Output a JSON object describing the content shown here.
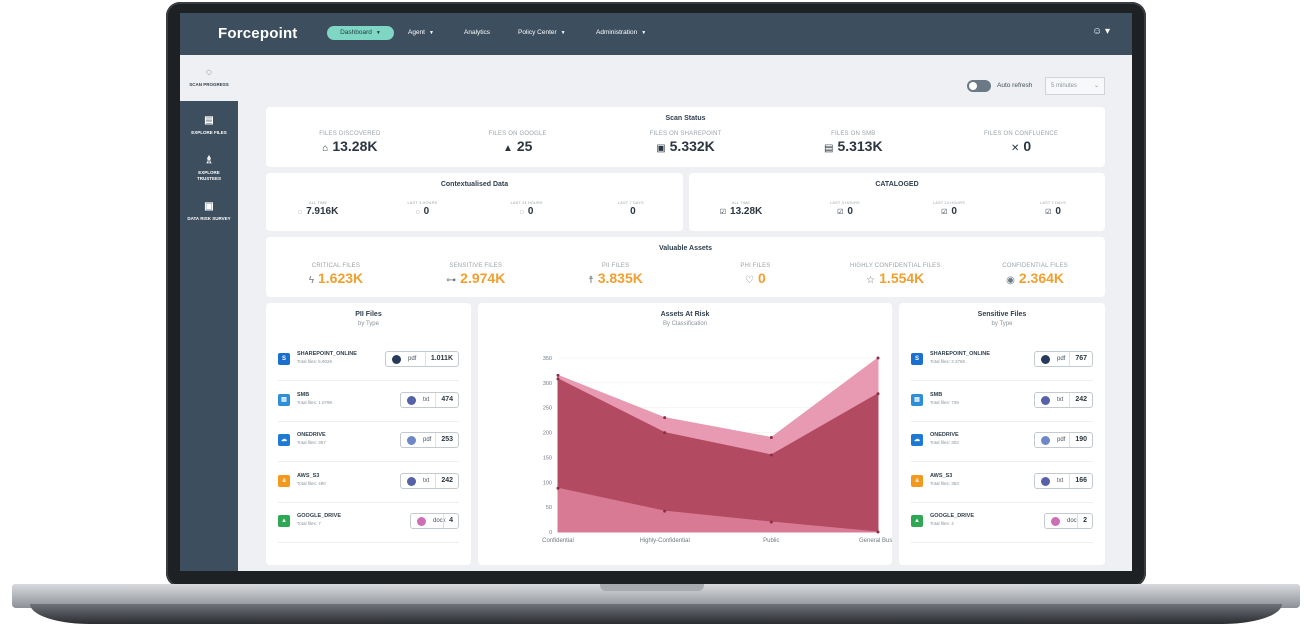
{
  "app": {
    "logo": "Forcepoint"
  },
  "nav": {
    "dashboard": "Dashboard",
    "agent": "Agent",
    "analytics": "Analytics",
    "policy_center": "Policy Center",
    "administration": "Administration",
    "caret": "▼",
    "user_icon": "☺ ▾"
  },
  "sidebar": {
    "scan_progress": "SCAN PROGRESS",
    "explore_files": "EXPLORE FILES",
    "explore_trustees_1": "EXPLORE",
    "explore_trustees_2": "TRUSTEES",
    "data_risk_survey": "DATA RISK SURVEY"
  },
  "controls": {
    "auto_refresh": "Auto refresh",
    "refresh_interval": "5 minutes",
    "caret": "⌄"
  },
  "scan_status": {
    "title": "Scan Status",
    "items": [
      {
        "label": "FILES DISCOVERED",
        "value": "13.28K",
        "icon": "⌂"
      },
      {
        "label": "FILES ON GOOGLE",
        "value": "25",
        "icon": "▲"
      },
      {
        "label": "FILES ON SHAREPOINT",
        "value": "5.332K",
        "icon": "▣"
      },
      {
        "label": "FILES ON SMB",
        "value": "5.313K",
        "icon": "▤"
      },
      {
        "label": "FILES ON CONFLUENCE",
        "value": "0",
        "icon": "✕"
      }
    ]
  },
  "contextualised": {
    "title": "Contextualised Data",
    "items": [
      {
        "label": "ALL TIME",
        "value": "7.916K",
        "icon": "◌"
      },
      {
        "label": "LAST 3 HOURS",
        "value": "0",
        "icon": "◌"
      },
      {
        "label": "LAST 24 HOURS",
        "value": "0",
        "icon": "◌"
      },
      {
        "label": "LAST 7 DAYS",
        "value": "0",
        "icon": ""
      }
    ]
  },
  "cataloged": {
    "title": "CATALOGED",
    "items": [
      {
        "label": "ALL TIME",
        "value": "13.28K",
        "icon": "☑"
      },
      {
        "label": "LAST 3 HOURS",
        "value": "0",
        "icon": "☑"
      },
      {
        "label": "LAST 24 HOURS",
        "value": "0",
        "icon": "☑"
      },
      {
        "label": "LAST 7 DAYS",
        "value": "0",
        "icon": "☑"
      }
    ]
  },
  "valuable_assets": {
    "title": "Valuable Assets",
    "items": [
      {
        "label": "CRITICAL FILES",
        "value": "1.623K",
        "icon": "ϟ"
      },
      {
        "label": "SENSITIVE FILES",
        "value": "2.974K",
        "icon": "⊶"
      },
      {
        "label": "PII FILES",
        "value": "3.835K",
        "icon": "☨"
      },
      {
        "label": "PHI FILES",
        "value": "0",
        "icon": "♡"
      },
      {
        "label": "HIGHLY CONFIDENTIAL FILES",
        "value": "1.554K",
        "icon": "☆"
      },
      {
        "label": "CONFIDENTIAL FILES",
        "value": "2.364K",
        "icon": "◉"
      }
    ]
  },
  "pii_files": {
    "title": "PII Files",
    "subtitle": "by Type",
    "rows": [
      {
        "name": "SHAREPOINT_ONLINE",
        "total": "Total files: 5.902K",
        "ext": "pdf",
        "count": "1.011K",
        "icon_color": "#1a6fcf",
        "dot": "#263a5c",
        "glyph": "S"
      },
      {
        "name": "SMB",
        "total": "Total files: 1.079K",
        "ext": "txt",
        "count": "474",
        "icon_color": "#2d8fd8",
        "dot": "#5661a8",
        "glyph": "▤"
      },
      {
        "name": "ONEDRIVE",
        "total": "Total files: 357",
        "ext": "pdf",
        "count": "253",
        "icon_color": "#1c7ad4",
        "dot": "#6f86c7",
        "glyph": "☁"
      },
      {
        "name": "AWS_S3",
        "total": "Total files: 490",
        "ext": "txt",
        "count": "242",
        "icon_color": "#f39a1e",
        "dot": "#5661a8",
        "glyph": "a"
      },
      {
        "name": "GOOGLE_DRIVE",
        "total": "Total files: 7",
        "ext": "docx",
        "count": "4",
        "icon_color": "#2fa853",
        "dot": "#cc6fb5",
        "glyph": "▲"
      }
    ]
  },
  "sensitive_files": {
    "title": "Sensitive Files",
    "subtitle": "by Type",
    "rows": [
      {
        "name": "SHAREPOINT_ONLINE",
        "total": "Total files: 3.376K",
        "ext": "pdf",
        "count": "767",
        "icon_color": "#1a6fcf",
        "dot": "#263a5c",
        "glyph": "S"
      },
      {
        "name": "SMB",
        "total": "Total files: 739",
        "ext": "txt",
        "count": "242",
        "icon_color": "#2d8fd8",
        "dot": "#5661a8",
        "glyph": "▤"
      },
      {
        "name": "ONEDRIVE",
        "total": "Total files: 302",
        "ext": "pdf",
        "count": "190",
        "icon_color": "#1c7ad4",
        "dot": "#6f86c7",
        "glyph": "☁"
      },
      {
        "name": "AWS_S3",
        "total": "Total files: 353",
        "ext": "txt",
        "count": "166",
        "icon_color": "#f39a1e",
        "dot": "#5661a8",
        "glyph": "a"
      },
      {
        "name": "GOOGLE_DRIVE",
        "total": "Total files: 4",
        "ext": "doc",
        "count": "2",
        "icon_color": "#2fa853",
        "dot": "#cc6fb5",
        "glyph": "▲"
      }
    ]
  },
  "chart_data": {
    "type": "area",
    "title": "Assets At Risk",
    "subtitle": "By Classification",
    "categories": [
      "Confidential",
      "Highly-Confidential",
      "Public",
      "General Busin"
    ],
    "ylim": [
      0,
      350
    ],
    "yticks": [
      0,
      50,
      100,
      150,
      200,
      250,
      300,
      350
    ],
    "series": [
      {
        "values": [
          315,
          230,
          190,
          350
        ],
        "color": "#e89ab2"
      },
      {
        "values": [
          308,
          200,
          155,
          278
        ],
        "color": "#b24a61"
      },
      {
        "values": [
          88,
          42,
          20,
          0
        ],
        "color": "#d97a94"
      }
    ],
    "grid": true,
    "legend": "none"
  }
}
